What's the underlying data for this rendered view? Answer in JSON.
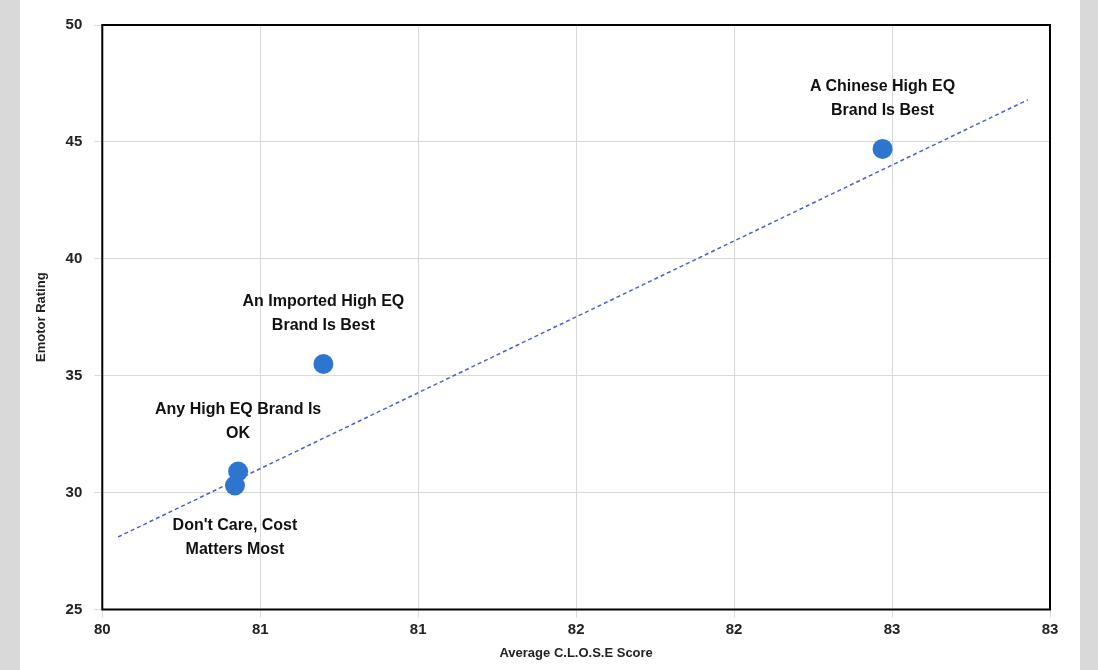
{
  "chart_data": {
    "type": "scatter",
    "xlabel": "Average C.L.O.S.E Score",
    "ylabel": "Emotor Rating",
    "xlim": [
      80,
      83
    ],
    "xticks": [
      80,
      {
        "value": 80.5,
        "label": "81"
      },
      81,
      {
        "value": 81.5,
        "label": "82"
      },
      82,
      {
        "value": 82.5,
        "label": "83"
      },
      83
    ],
    "ylim": [
      25,
      50
    ],
    "yticks": [
      25,
      30,
      35,
      40,
      45,
      50
    ],
    "grid": true,
    "legend": false,
    "series": [
      {
        "color": "#2e75d0",
        "marker": "circle",
        "x": [
          80.42,
          80.43,
          80.7,
          82.47
        ],
        "values": [
          30.3,
          30.9,
          35.5,
          44.7
        ]
      },
      {
        "type": "line",
        "color": "#4a5fd0",
        "line_style": "dashed",
        "marker": "none",
        "x": [
          80.05,
          82.93
        ],
        "values": [
          28.1,
          46.8
        ]
      }
    ],
    "annotations": [
      {
        "text": "A Chinese High EQ Brand Is Best",
        "x": 82.47,
        "y": 44.7
      },
      {
        "text": "An Imported High EQ Brand Is Best",
        "x": 80.7,
        "y": 35.5
      },
      {
        "text": "Any High EQ Brand Is OK",
        "x": 80.43,
        "y": 30.9
      },
      {
        "text": "Don't Care, Cost Matters Most",
        "x": 80.42,
        "y": 30.3
      }
    ]
  }
}
